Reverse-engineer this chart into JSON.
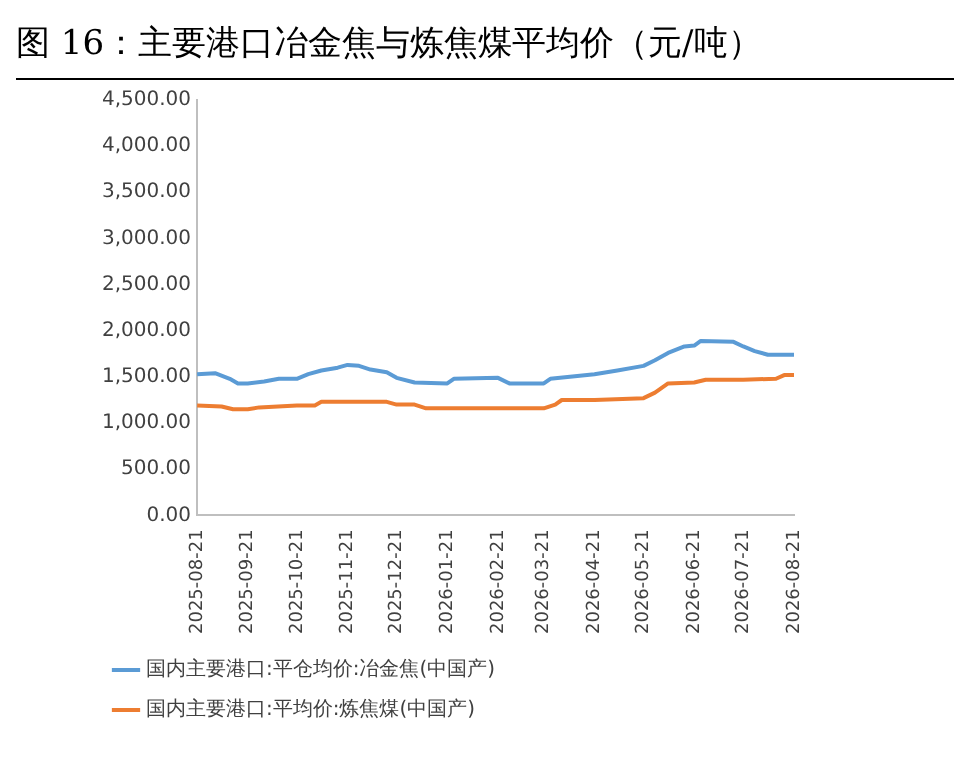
{
  "chart_data": {
    "type": "line",
    "title": "图 16：主要港口冶金焦与炼焦煤平均价（元/吨）",
    "x": [
      "2025-08-21",
      "2025-09-01",
      "2025-09-10",
      "2025-09-15",
      "2025-09-21",
      "2025-10-01",
      "2025-10-10",
      "2025-10-21",
      "2025-10-28",
      "2025-11-05",
      "2025-11-15",
      "2025-11-21",
      "2025-11-28",
      "2025-12-05",
      "2025-12-15",
      "2025-12-21",
      "2026-01-01",
      "2026-01-21",
      "2026-01-25",
      "2026-02-21",
      "2026-02-28",
      "2026-03-21",
      "2026-03-25",
      "2026-04-21",
      "2026-05-05",
      "2026-05-21",
      "2026-05-28",
      "2026-06-05",
      "2026-06-15",
      "2026-06-21",
      "2026-06-25",
      "2026-07-15",
      "2026-07-21",
      "2026-07-28",
      "2026-08-05",
      "2026-08-21"
    ],
    "series": [
      {
        "name": "国内主要港口:平仓均价:冶金焦(中国产)",
        "color": "#5b9bd5",
        "values": [
          1530,
          1540,
          1480,
          1430,
          1430,
          1450,
          1480,
          1480,
          1530,
          1570,
          1600,
          1630,
          1620,
          1580,
          1550,
          1490,
          1440,
          1430,
          1480,
          1490,
          1430,
          1430,
          1480,
          1530,
          1570,
          1620,
          1680,
          1760,
          1830,
          1840,
          1890,
          1880,
          1830,
          1780,
          1740,
          1740
        ]
      },
      {
        "name": "国内主要港口:平均价:炼焦煤(中国产)",
        "color": "#ed7d31",
        "x": [
          "2025-08-21",
          "2025-09-05",
          "2025-09-12",
          "2025-09-21",
          "2025-09-28",
          "2025-10-21",
          "2025-11-01",
          "2025-11-05",
          "2025-12-15",
          "2025-12-21",
          "2026-01-01",
          "2026-01-08",
          "2026-01-21",
          "2026-02-21",
          "2026-03-21",
          "2026-03-28",
          "2026-04-01",
          "2026-04-21",
          "2026-05-21",
          "2026-05-28",
          "2026-06-05",
          "2026-06-21",
          "2026-06-28",
          "2026-07-21",
          "2026-08-10",
          "2026-08-15",
          "2026-08-21"
        ],
        "values": [
          1190,
          1180,
          1150,
          1150,
          1170,
          1190,
          1190,
          1230,
          1230,
          1200,
          1200,
          1160,
          1160,
          1160,
          1160,
          1200,
          1250,
          1250,
          1270,
          1330,
          1430,
          1440,
          1470,
          1470,
          1480,
          1520,
          1520
        ]
      }
    ],
    "xlim": [
      "2025-08-21",
      "2026-08-21"
    ],
    "xticks": [
      "2025-08-21",
      "2025-09-21",
      "2025-10-21",
      "2025-11-21",
      "2025-12-21",
      "2026-01-21",
      "2026-02-21",
      "2026-03-21",
      "2026-04-21",
      "2026-05-21",
      "2026-06-21",
      "2026-07-21",
      "2026-08-21"
    ],
    "ylim": [
      0,
      4500
    ],
    "yticks": [
      {
        "value": 0,
        "label": "0.00"
      },
      {
        "value": 500,
        "label": "500.00"
      },
      {
        "value": 1000,
        "label": "1,000.00"
      },
      {
        "value": 1500,
        "label": "1,500.00"
      },
      {
        "value": 2000,
        "label": "2,000.00"
      },
      {
        "value": 2500,
        "label": "2,500.00"
      },
      {
        "value": 3000,
        "label": "3,000.00"
      },
      {
        "value": 3500,
        "label": "3,500.00"
      },
      {
        "value": 4000,
        "label": "4,000.00"
      },
      {
        "value": 4500,
        "label": "4,500.00"
      }
    ],
    "grid": false,
    "legend": "bottom",
    "marker": "none",
    "line_style": "solid"
  }
}
